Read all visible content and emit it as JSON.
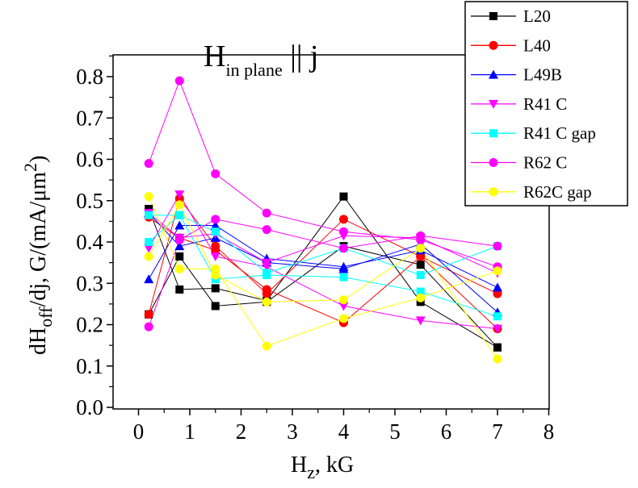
{
  "chart_data": {
    "type": "line",
    "title": {
      "main": "H",
      "sub": "in plane",
      "rest": " || j"
    },
    "xlabel": {
      "main": "H",
      "sub": "z",
      "rest": ", kG"
    },
    "ylabel": {
      "part1": "dH",
      "sub": "off",
      "part2": "/dj, G/(mA/μm",
      "sup": "2",
      "part3": ")"
    },
    "xlim": [
      -0.3,
      8
    ],
    "ylim": [
      0,
      0.85
    ],
    "xticks": [
      "0",
      "1",
      "2",
      "3",
      "4",
      "5",
      "6",
      "7",
      "8"
    ],
    "yticks": [
      "0.0",
      "0.1",
      "0.2",
      "0.3",
      "0.4",
      "0.5",
      "0.6",
      "0.7",
      "0.8"
    ],
    "legend_position": "top-right",
    "series": [
      {
        "name": "L20",
        "color": "#000000",
        "marker": "square",
        "x": [
          0.2,
          0.8,
          1.5,
          2.5,
          4,
          5.5,
          7,
          0.2,
          0.8,
          1.5,
          2.5,
          4,
          5.5,
          7
        ],
        "y": [
          0.48,
          0.285,
          0.288,
          0.258,
          0.51,
          0.255,
          0.145,
          0.225,
          0.365,
          0.245,
          0.255,
          0.39,
          0.345,
          0.145
        ],
        "break_after": 6
      },
      {
        "name": "L40",
        "color": "#ff0000",
        "marker": "circle",
        "x": [
          0.2,
          0.8,
          1.5,
          2.5,
          4,
          5.5,
          7,
          0.2,
          0.8,
          1.5,
          2.5,
          4,
          5.5,
          7
        ],
        "y": [
          0.225,
          0.505,
          0.39,
          0.275,
          0.455,
          0.365,
          0.275,
          0.46,
          0.41,
          0.38,
          0.285,
          0.205,
          0.365,
          0.19
        ],
        "break_after": 6
      },
      {
        "name": "L49B",
        "color": "#0000ff",
        "marker": "triangle-up",
        "x": [
          0.2,
          0.8,
          1.5,
          2.5,
          4,
          5.5,
          7,
          0.2,
          0.8,
          1.5,
          2.5,
          4,
          5.5,
          7
        ],
        "y": [
          0.31,
          0.44,
          0.44,
          0.36,
          0.34,
          0.38,
          0.29,
          0.47,
          0.39,
          0.41,
          0.35,
          0.335,
          0.395,
          0.23
        ],
        "break_after": 6
      },
      {
        "name": "R41 C",
        "color": "#ff00ff",
        "marker": "triangle-down",
        "x": [
          0.2,
          0.8,
          1.5,
          2.5,
          4,
          5.5,
          7,
          0.2,
          0.8,
          1.5,
          2.5,
          4,
          5.5,
          7
        ],
        "y": [
          0.385,
          0.515,
          0.365,
          0.34,
          0.245,
          0.21,
          0.19,
          0.47,
          0.41,
          0.42,
          0.35,
          0.415,
          0.41,
          0.325
        ],
        "break_after": 6
      },
      {
        "name": "R41 C gap",
        "color": "#00ffff",
        "marker": "square",
        "x": [
          0.2,
          0.8,
          1.5,
          2.5,
          4,
          5.5,
          7,
          0.2,
          0.8,
          1.5,
          2.5,
          4,
          5.5,
          7
        ],
        "y": [
          0.4,
          0.465,
          0.31,
          0.32,
          0.315,
          0.28,
          0.22,
          0.465,
          0.465,
          0.425,
          0.325,
          0.385,
          0.32,
          0.39
        ],
        "break_after": 6
      },
      {
        "name": "R62 C",
        "color": "#ff00ff",
        "marker": "circle",
        "x": [
          0.2,
          0.8,
          1.5,
          2.5,
          4,
          5.5,
          7,
          0.2,
          0.8,
          1.5,
          2.5,
          4,
          5.5,
          7
        ],
        "y": [
          0.59,
          0.79,
          0.565,
          0.47,
          0.425,
          0.405,
          0.34,
          0.195,
          0.405,
          0.455,
          0.43,
          0.385,
          0.415,
          0.39
        ],
        "break_after": 6
      },
      {
        "name": "R62C gap",
        "color": "#ffff00",
        "marker": "circle",
        "x": [
          0.2,
          0.8,
          1.5,
          2.5,
          4,
          5.5,
          7,
          0.2,
          0.8,
          1.5,
          2.5,
          4,
          5.5,
          7
        ],
        "y": [
          0.51,
          0.335,
          0.335,
          0.148,
          0.215,
          0.265,
          0.33,
          0.365,
          0.49,
          0.32,
          0.255,
          0.26,
          0.385,
          0.117
        ],
        "break_after": 6
      }
    ]
  }
}
